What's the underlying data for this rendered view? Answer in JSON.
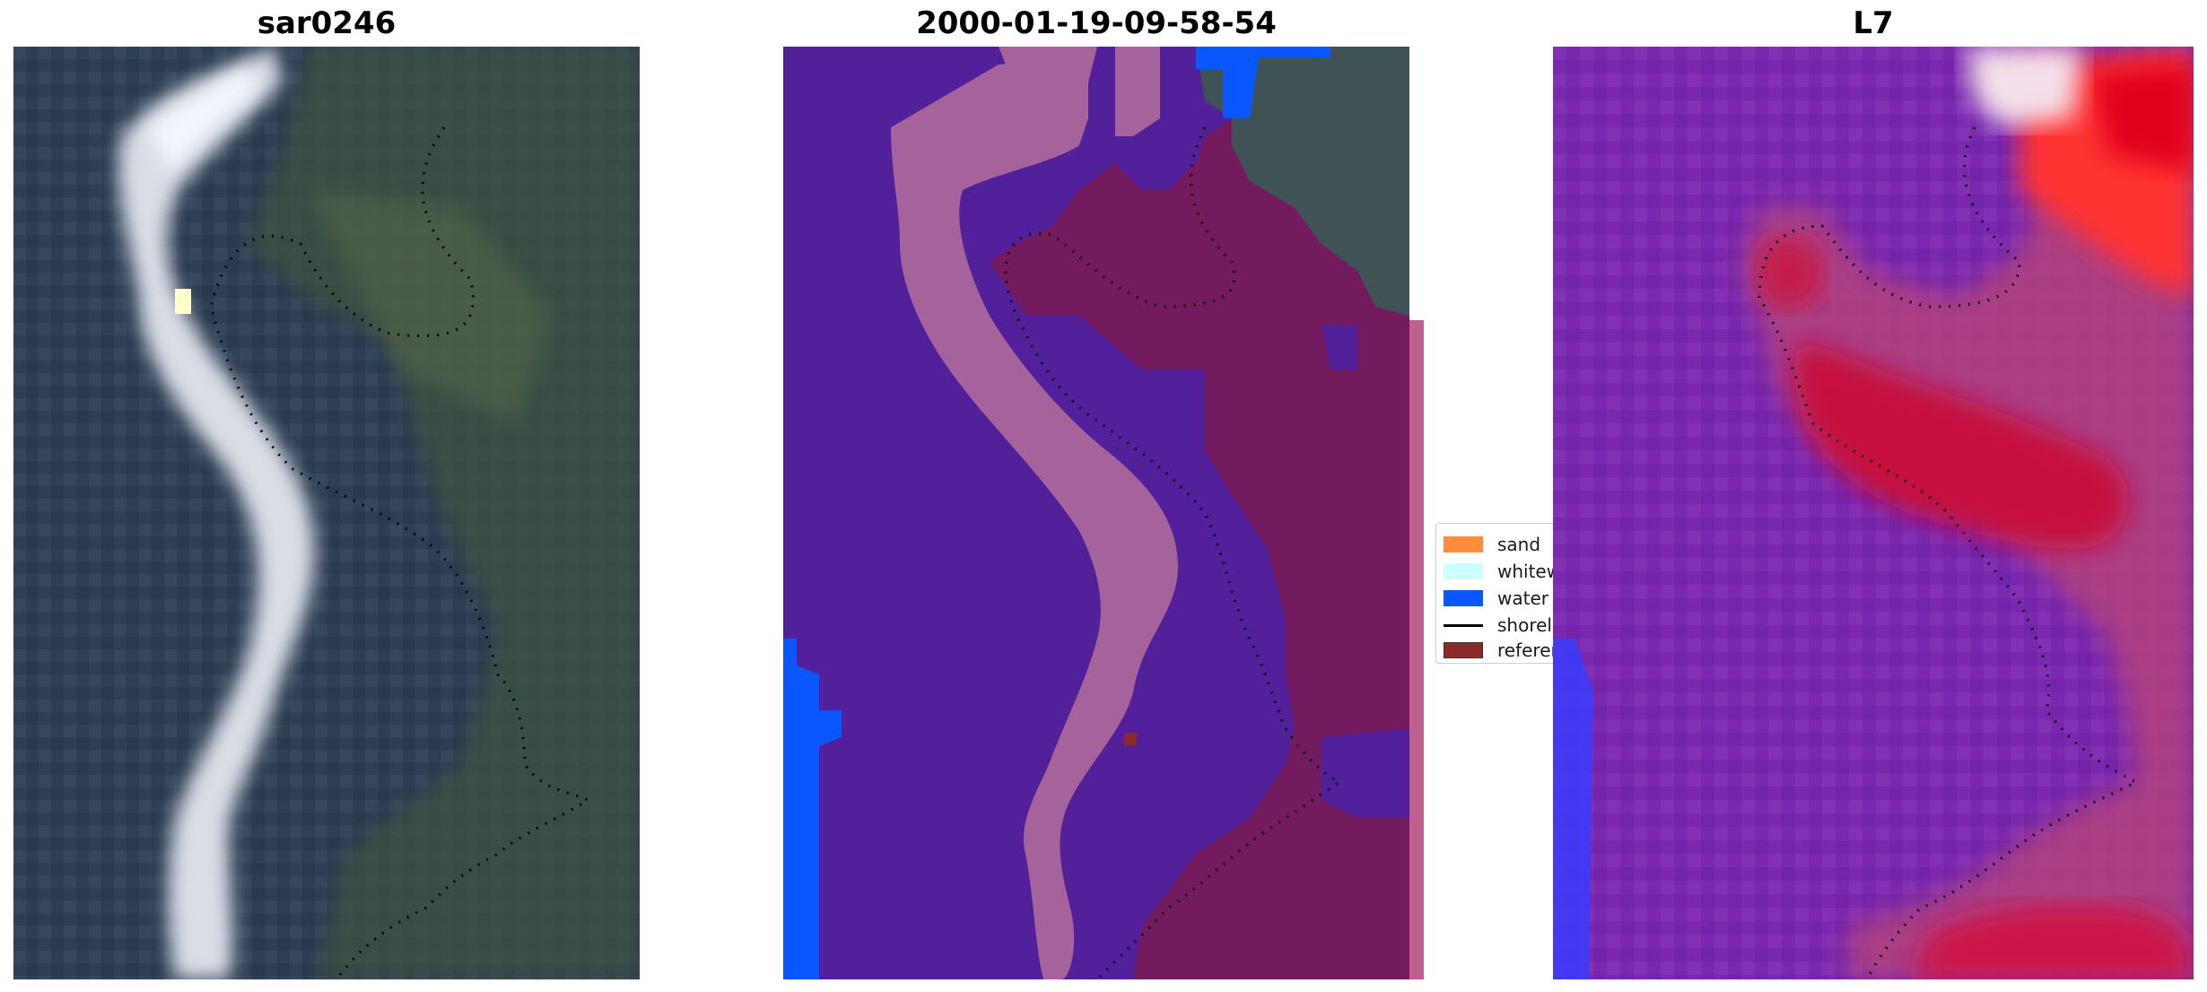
{
  "panels": [
    {
      "title": "sar0246"
    },
    {
      "title": "2000-01-19-09-58-54"
    },
    {
      "title": "L7"
    }
  ],
  "legend": {
    "items": [
      {
        "label": "sand",
        "color": "#ff8c3a",
        "kind": "patch"
      },
      {
        "label": "whitew",
        "color": "#ccffff",
        "kind": "patch"
      },
      {
        "label": "water",
        "color": "#0b57ff",
        "kind": "patch"
      },
      {
        "label": "shorel",
        "color": "#000000",
        "kind": "line"
      },
      {
        "label": "referen",
        "color": "#8b2a2a",
        "kind": "patch"
      }
    ]
  },
  "colors": {
    "classif_background": "#52209a",
    "classif_sand_band": "#a6629a",
    "classif_land": "#731b5e",
    "water": "#0b57ff",
    "shoreline": "#000000"
  }
}
